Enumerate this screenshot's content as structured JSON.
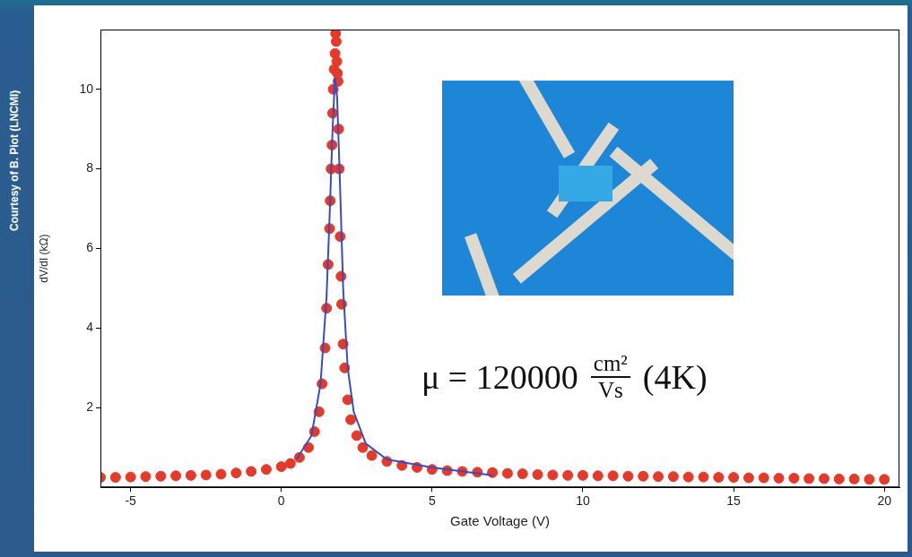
{
  "chart_data": {
    "type": "scatter",
    "credit": "Courtesy of B. Piot (LNCMI)",
    "x_label": "Gate Voltage (V)",
    "y_label": "dV/dI (kΩ)",
    "annotation": {
      "prefix": "μ = 120000",
      "numerator": "cm²",
      "denominator": "Vs",
      "suffix": "(4K)"
    },
    "xlim": [
      -6,
      20.5
    ],
    "xticks": [
      -5,
      0,
      5,
      10,
      15,
      20
    ],
    "ylim": [
      0,
      11.5
    ],
    "yticks": [
      2,
      4,
      6,
      8,
      10
    ],
    "grid": false,
    "series": [
      {
        "type": "scatter",
        "color": "#e5392a",
        "marker": "circle",
        "x": [
          -6,
          -5.5,
          -5,
          -4.5,
          -4,
          -3.5,
          -3,
          -2.5,
          -2,
          -1.5,
          -1,
          -0.5,
          0,
          0.3,
          0.6,
          0.9,
          1.1,
          1.25,
          1.35,
          1.45,
          1.5,
          1.55,
          1.6,
          1.62,
          1.65,
          1.68,
          1.7,
          1.72,
          1.75,
          1.78,
          1.8,
          1.82,
          1.84,
          1.86,
          1.88,
          1.9,
          1.92,
          1.95,
          1.98,
          2.0,
          2.05,
          2.1,
          2.2,
          2.3,
          2.5,
          2.7,
          3.0,
          3.5,
          4,
          4.5,
          5,
          5.5,
          6,
          6.5,
          7,
          7.5,
          8,
          8.5,
          9,
          9.5,
          10,
          10.5,
          11,
          11.5,
          12,
          12.5,
          13,
          13.5,
          14,
          14.5,
          15,
          15.5,
          16,
          16.5,
          17,
          17.5,
          18,
          18.5,
          19,
          19.5,
          20
        ],
        "values": [
          0.25,
          0.25,
          0.26,
          0.27,
          0.28,
          0.29,
          0.3,
          0.31,
          0.33,
          0.36,
          0.4,
          0.45,
          0.52,
          0.6,
          0.75,
          1.0,
          1.4,
          1.9,
          2.6,
          3.5,
          4.5,
          5.6,
          6.5,
          7.2,
          8.0,
          8.6,
          9.4,
          10.0,
          10.5,
          10.9,
          11.4,
          11.2,
          10.7,
          10.4,
          10.2,
          9.0,
          8.0,
          6.3,
          5.3,
          4.6,
          3.6,
          3.0,
          2.2,
          1.7,
          1.3,
          1.0,
          0.8,
          0.65,
          0.55,
          0.5,
          0.45,
          0.42,
          0.4,
          0.38,
          0.37,
          0.35,
          0.34,
          0.32,
          0.31,
          0.3,
          0.3,
          0.29,
          0.29,
          0.28,
          0.28,
          0.27,
          0.27,
          0.26,
          0.26,
          0.25,
          0.25,
          0.24,
          0.24,
          0.23,
          0.23,
          0.22,
          0.22,
          0.21,
          0.21,
          0.2,
          0.2
        ]
      },
      {
        "type": "line",
        "color": "#3b4cc0",
        "line_style": "solid",
        "x": [
          0.5,
          1.0,
          1.3,
          1.5,
          1.6,
          1.7,
          1.78,
          1.85,
          1.95,
          2.05,
          2.2,
          2.4,
          2.8,
          3.5,
          5,
          7
        ],
        "values": [
          0.7,
          1.3,
          2.6,
          4.8,
          6.8,
          9.0,
          10.3,
          9.8,
          7.5,
          5.0,
          3.0,
          1.9,
          1.1,
          0.7,
          0.5,
          0.3
        ]
      }
    ]
  }
}
